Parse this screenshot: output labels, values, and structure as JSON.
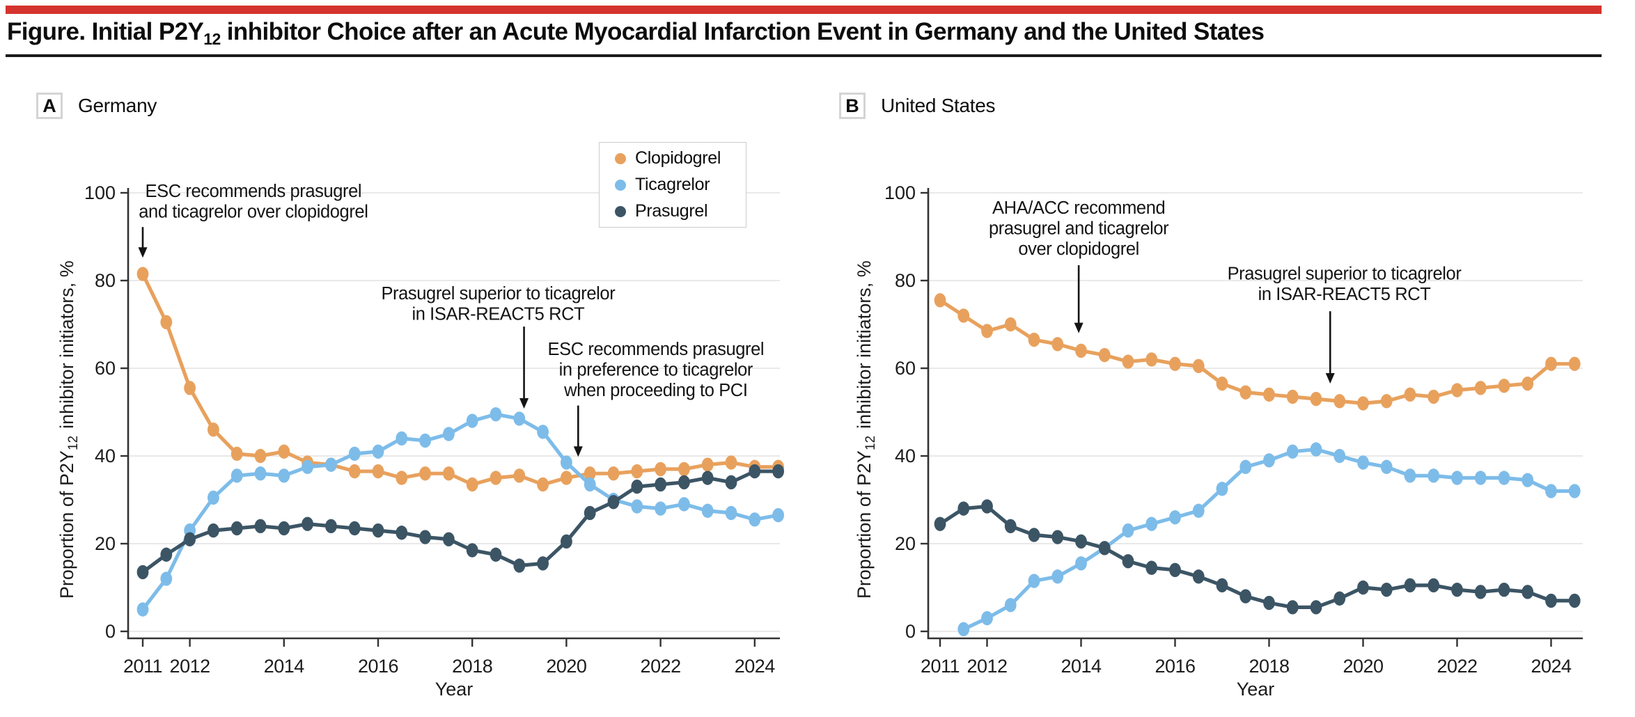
{
  "page": {
    "accent_red": "#D5332D",
    "rule_black": "#1A1A1A",
    "title": {
      "pre": "Figure. Initial P2Y",
      "sub": "12",
      "post": " inhibitor Choice after an Acute Myocardial Infarction Event in Germany and the United States"
    }
  },
  "panel_a": {
    "label": "A",
    "title": "Germany"
  },
  "panel_b": {
    "label": "B",
    "title": "United States"
  },
  "legend": {
    "position": "top-right-inside-panel-A",
    "items": [
      {
        "label": "Clopidogrel",
        "color": "#E8A15D"
      },
      {
        "label": "Ticagrelor",
        "color": "#7DBCE9"
      },
      {
        "label": "Prasugrel",
        "color": "#3C5565"
      }
    ]
  },
  "chart_data": [
    {
      "type": "line",
      "panel": "A",
      "region": "Germany",
      "xlabel": "Year",
      "ylabel": {
        "pre": "Proportion of P2Y",
        "sub": "12",
        "post": "inhibitor initiators, %"
      },
      "xlim": [
        2010.7,
        2024.8
      ],
      "ylim": [
        0,
        100
      ],
      "xticks": [
        2011,
        2012,
        2014,
        2016,
        2018,
        2020,
        2022,
        2024
      ],
      "yticks": [
        0,
        20,
        40,
        60,
        80,
        100
      ],
      "x_step": 0.5,
      "grid": true,
      "axis_color": "#333333",
      "grid_color": "#E2E2E2",
      "series": [
        {
          "name": "Clopidogrel",
          "color": "#E8A15D",
          "x_start": 2011.0,
          "values": [
            81.5,
            70.5,
            55.5,
            46,
            40.5,
            40,
            41,
            38.5,
            38,
            36.5,
            36.5,
            35,
            36,
            36,
            33.5,
            35,
            35.5,
            33.5,
            35,
            36,
            36,
            36.5,
            37,
            37,
            38,
            38.5,
            37.5,
            37.5
          ]
        },
        {
          "name": "Ticagrelor",
          "color": "#7DBCE9",
          "x_start": 2011.0,
          "values": [
            5,
            12,
            23,
            30.5,
            35.5,
            36,
            35.5,
            37.5,
            38,
            40.5,
            41,
            44,
            43.5,
            45,
            48,
            49.5,
            48.5,
            45.5,
            38.5,
            33.5,
            30,
            28.5,
            28,
            29,
            27.5,
            27,
            25.5,
            26.5
          ]
        },
        {
          "name": "Prasugrel",
          "color": "#3C5565",
          "x_start": 2011.0,
          "values": [
            13.5,
            17.5,
            21,
            23,
            23.5,
            24,
            23.5,
            24.5,
            24,
            23.5,
            23,
            22.5,
            21.5,
            21,
            18.5,
            17.5,
            15,
            15.5,
            20.5,
            27,
            29.5,
            33,
            33.5,
            34,
            35,
            34,
            36.5,
            36.5
          ]
        }
      ],
      "annotations": [
        {
          "lines": [
            "ESC recommends prasugrel",
            "and ticagrelor over clopidogrel"
          ],
          "x": 2013.35,
          "y": 100.3,
          "arrow_x": 2011.0,
          "arrow_from": 92.2,
          "arrow_to": 85.2
        },
        {
          "lines": [
            "Prasugrel superior to ticagrelor",
            "in ISAR-REACT5 RCT"
          ],
          "x": 2018.55,
          "y": 77.0,
          "arrow_x": 2019.1,
          "arrow_from": 69.5,
          "arrow_to": 50.8
        },
        {
          "lines": [
            "ESC recommends prasugrel",
            "in preference to ticagrelor",
            "when proceeding to PCI"
          ],
          "x": 2021.9,
          "y": 64.3,
          "arrow_x": 2020.25,
          "arrow_from": 51.5,
          "arrow_to": 39.8
        }
      ]
    },
    {
      "type": "line",
      "panel": "B",
      "region": "United States",
      "xlabel": "Year",
      "ylabel": {
        "pre": "Proportion of P2Y",
        "sub": "12",
        "post": "inhibitor initiators, %"
      },
      "xlim": [
        2010.7,
        2024.8
      ],
      "ylim": [
        0,
        100
      ],
      "xticks": [
        2011,
        2012,
        2014,
        2016,
        2018,
        2020,
        2022,
        2024
      ],
      "yticks": [
        0,
        20,
        40,
        60,
        80,
        100
      ],
      "x_step": 0.5,
      "grid": true,
      "axis_color": "#333333",
      "grid_color": "#E2E2E2",
      "series": [
        {
          "name": "Clopidogrel",
          "color": "#E8A15D",
          "x_start": 2011.0,
          "values": [
            75.5,
            72,
            68.5,
            70,
            66.5,
            65.5,
            64,
            63,
            61.5,
            62,
            61,
            60.5,
            56.5,
            54.5,
            54,
            53.5,
            53,
            52.5,
            52,
            52.5,
            54,
            53.5,
            55,
            55.5,
            56,
            56.5,
            61,
            61
          ]
        },
        {
          "name": "Ticagrelor",
          "color": "#7DBCE9",
          "x_start": 2011.5,
          "values": [
            0.5,
            3,
            6,
            11.5,
            12.5,
            15.5,
            19,
            23,
            24.5,
            26,
            27.5,
            32.5,
            37.5,
            39,
            41,
            41.5,
            40,
            38.5,
            37.5,
            35.5,
            35.5,
            35,
            35,
            35,
            34.5,
            32,
            32
          ]
        },
        {
          "name": "Prasugrel",
          "color": "#3C5565",
          "x_start": 2011.0,
          "values": [
            24.5,
            28,
            28.5,
            24,
            22,
            21.5,
            20.5,
            19,
            16,
            14.5,
            14,
            12.5,
            10.5,
            8,
            6.5,
            5.5,
            5.5,
            7.5,
            10,
            9.5,
            10.5,
            10.5,
            9.5,
            9,
            9.5,
            9,
            7,
            7
          ]
        }
      ],
      "annotations": [
        {
          "lines": [
            "AHA/ACC recommend",
            "prasugrel and ticagrelor",
            "over clopidogrel"
          ],
          "x": 2013.95,
          "y": 96.5,
          "arrow_x": 2013.95,
          "arrow_from": 83.5,
          "arrow_to": 68.0
        },
        {
          "lines": [
            "Prasugrel superior to ticagrelor",
            "in ISAR-REACT5 RCT"
          ],
          "x": 2019.6,
          "y": 81.5,
          "arrow_x": 2019.3,
          "arrow_from": 73.0,
          "arrow_to": 56.5
        }
      ]
    }
  ]
}
